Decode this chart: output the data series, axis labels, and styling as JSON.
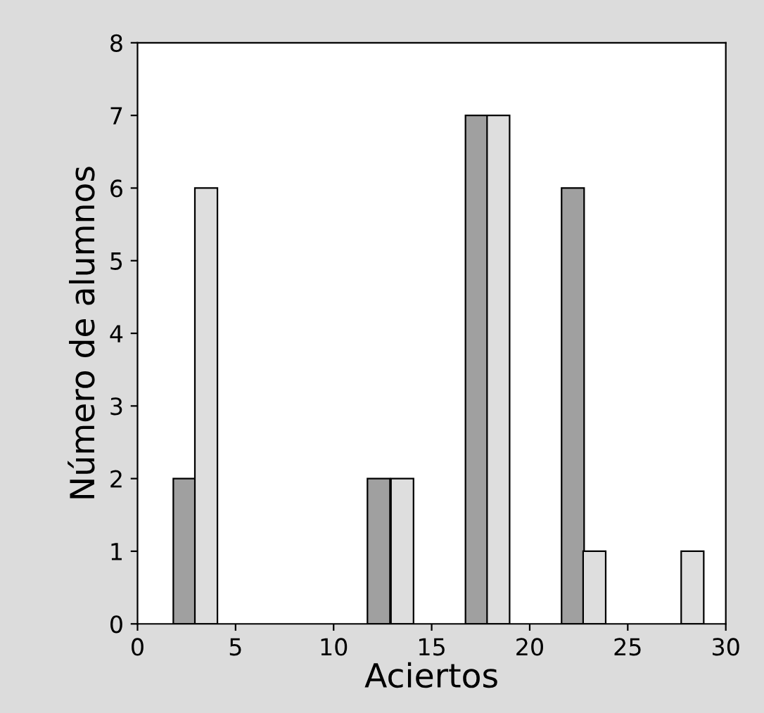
{
  "chart_data": {
    "type": "bar",
    "xlabel": "Aciertos",
    "ylabel": "Número de alumnos",
    "series": [
      {
        "color": "#a0a0a0",
        "x": [
          2.4,
          12.3,
          17.3,
          22.2
        ],
        "values": [
          2,
          2,
          7,
          6
        ]
      },
      {
        "color": "#dedede",
        "x": [
          3.5,
          13.5,
          18.4,
          23.3,
          28.3
        ],
        "values": [
          6,
          2,
          7,
          1,
          1
        ]
      }
    ],
    "xlim": [
      0,
      30
    ],
    "xticks": [
      0,
      5,
      10,
      15,
      20,
      25,
      30
    ],
    "ylim": [
      0,
      8
    ],
    "yticks": [
      0,
      1,
      2,
      3,
      4,
      5,
      6,
      7,
      8
    ],
    "grid": false,
    "legend": false
  }
}
